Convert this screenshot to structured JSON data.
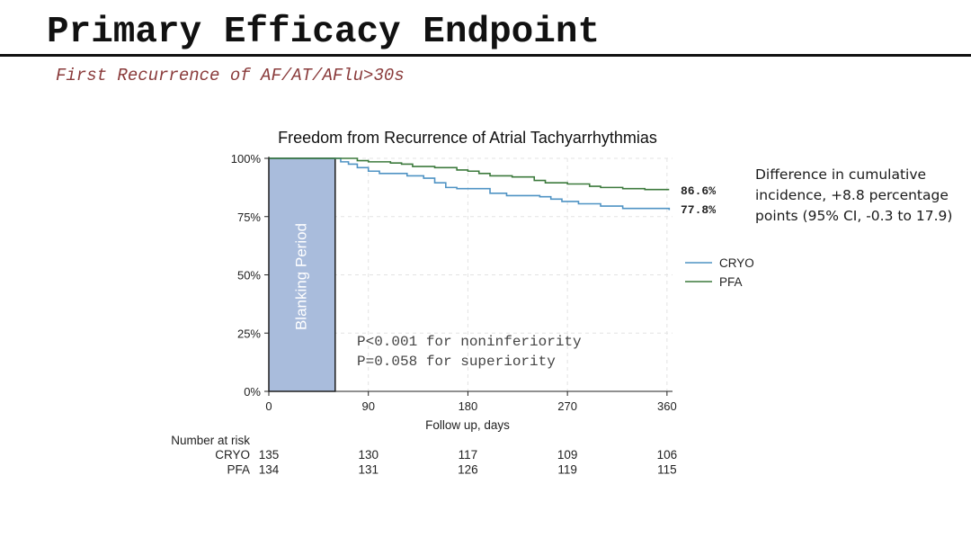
{
  "slide": {
    "title": "Primary Efficacy Endpoint",
    "subtitle": "First Recurrence of AF/AT/AFlu>30s",
    "note_lines": [
      "Difference in cumulative",
      "incidence, +8.8 percentage",
      "points (95% CI, -0.3 to 17.9)"
    ]
  },
  "chart_data": {
    "type": "line",
    "title": "Freedom from Recurrence of Atrial Tachyarrhythmias",
    "xlabel": "Follow up, days",
    "ylabel": "",
    "xlim": [
      0,
      365
    ],
    "ylim": [
      0,
      100
    ],
    "x_ticks": [
      0,
      90,
      180,
      270,
      360
    ],
    "y_ticks": [
      0,
      25,
      50,
      75,
      100
    ],
    "y_tick_labels": [
      "0%",
      "25%",
      "50%",
      "75%",
      "100%"
    ],
    "grid": true,
    "legend_position": "right",
    "colors": {
      "CRYO": "#4f93c4",
      "PFA": "#3c7a3c",
      "blanking": "#a9bcdc"
    },
    "blanking": {
      "label": "Blanking Period",
      "x": [
        0,
        60
      ]
    },
    "series": [
      {
        "name": "CRYO",
        "end_label": "77.8%",
        "x": [
          0,
          60,
          65,
          72,
          80,
          90,
          100,
          120,
          125,
          140,
          150,
          160,
          170,
          180,
          200,
          215,
          230,
          245,
          255,
          265,
          280,
          300,
          320,
          340,
          362
        ],
        "y": [
          100,
          100,
          98.5,
          97.5,
          96,
          94.5,
          93.5,
          93.5,
          92.5,
          91.5,
          89.5,
          87.5,
          87,
          87,
          85,
          84,
          84,
          83.5,
          82.5,
          81.5,
          80.5,
          79.5,
          78.5,
          78.5,
          77.8
        ]
      },
      {
        "name": "PFA",
        "end_label": "86.6%",
        "x": [
          0,
          70,
          80,
          90,
          110,
          120,
          130,
          150,
          170,
          180,
          190,
          200,
          220,
          240,
          250,
          270,
          290,
          300,
          320,
          340,
          362
        ],
        "y": [
          100,
          100,
          99,
          98.5,
          98,
          97.5,
          96.5,
          96,
          95,
          94.5,
          93.5,
          92.5,
          92,
          90.5,
          89.5,
          89,
          88,
          87.5,
          87,
          86.6,
          86.6
        ]
      }
    ],
    "risk_table": {
      "title": "Number at risk",
      "timepoints": [
        0,
        90,
        180,
        270,
        360
      ],
      "rows": [
        {
          "name": "CRYO",
          "values": [
            135,
            130,
            117,
            109,
            106
          ]
        },
        {
          "name": "PFA",
          "values": [
            134,
            131,
            126,
            119,
            115
          ]
        }
      ]
    },
    "annotations": [
      "P<0.001 for noninferiority",
      "P=0.058 for superiority"
    ]
  }
}
